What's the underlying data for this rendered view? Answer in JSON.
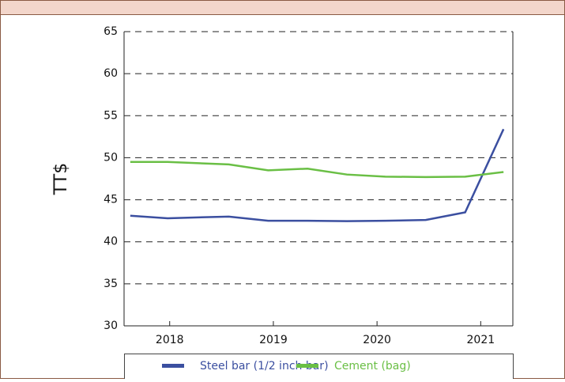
{
  "chart_data": {
    "type": "line",
    "y_label": "TT$",
    "x": [
      2017.62,
      2017.98,
      2018.57,
      2018.95,
      2019.33,
      2019.71,
      2020.08,
      2020.47,
      2020.85,
      2021.22
    ],
    "series": [
      {
        "name": "Steel bar (1/2 inch bar)",
        "color": "#3b4fa0",
        "values": [
          43.1,
          42.8,
          43.0,
          42.5,
          42.5,
          42.45,
          42.5,
          42.6,
          43.5,
          53.4
        ]
      },
      {
        "name": "Cement (bag)",
        "color": "#6abf45",
        "values": [
          49.5,
          49.5,
          49.2,
          48.5,
          48.7,
          48.0,
          47.75,
          47.7,
          47.75,
          48.3
        ]
      }
    ],
    "xlim": [
      2017.56,
      2021.31
    ],
    "xticks": [
      2018,
      2019,
      2020,
      2021
    ],
    "ylim": [
      30,
      65
    ],
    "yticks": [
      30,
      35,
      40,
      45,
      50,
      55,
      60,
      65
    ],
    "grid": true,
    "legend": "bottom"
  }
}
